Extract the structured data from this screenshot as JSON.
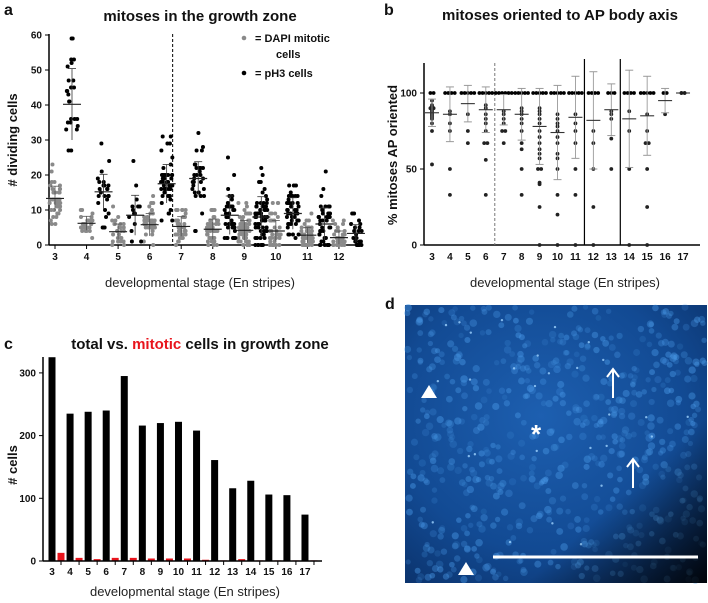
{
  "chart_data": [
    {
      "panel": "a",
      "type": "scatter",
      "title": "mitoses in the growth zone",
      "xlabel": "developmental stage (En stripes)",
      "ylabel": "# dividing cells",
      "ylim": [
        0,
        60
      ],
      "yticks": [
        "0",
        "10",
        "20",
        "30",
        "40",
        "50",
        "60"
      ],
      "categories": [
        "3",
        "4",
        "5",
        "6",
        "7",
        "8",
        "9",
        "10",
        "11",
        "12"
      ],
      "divider_after_category": "6",
      "legend": {
        "placement": "top-right",
        "entries": [
          {
            "label_line1": "= DAPI mitotic",
            "label_line2": "cells",
            "color": "#8a8a8a"
          },
          {
            "label_line1": "= pH3 cells",
            "color": "#000000"
          }
        ]
      },
      "series": [
        {
          "name": "DAPI mitotic cells",
          "color": "#8a8a8a",
          "mean": [
            13.3,
            6.2,
            3.8,
            5.8,
            5.3,
            4.5,
            4.2,
            4.0,
            2.8,
            2.1
          ],
          "sd": [
            3.5,
            2.0,
            2.2,
            3.2,
            2.8,
            2.9,
            2.8,
            3.0,
            2.2,
            1.9
          ],
          "n": [
            40,
            30,
            25,
            40,
            35,
            45,
            55,
            35,
            45,
            35
          ],
          "min": [
            6,
            2,
            0,
            0,
            0,
            0,
            0,
            0,
            0,
            0
          ],
          "max": [
            23,
            10,
            11,
            14,
            10,
            10,
            12,
            12,
            9,
            7
          ]
        },
        {
          "name": "pH3 cells",
          "color": "#000000",
          "mean": [
            40.2,
            15.2,
            8.5,
            17.5,
            19.0,
            8.5,
            8.0,
            9.0,
            6.0,
            3.3
          ],
          "sd": [
            10.2,
            5.0,
            5.7,
            5.5,
            4.8,
            5.5,
            5.8,
            4.5,
            4.6,
            2.5
          ],
          "n": [
            25,
            25,
            15,
            45,
            30,
            40,
            60,
            45,
            45,
            25
          ],
          "min": [
            27,
            5,
            1,
            7,
            4,
            2,
            0,
            2,
            0,
            0
          ],
          "max": [
            59,
            29,
            24,
            31,
            32,
            25,
            22,
            17,
            21,
            9
          ]
        }
      ]
    },
    {
      "panel": "b",
      "type": "scatter",
      "title": "mitoses oriented to AP body axis",
      "xlabel": "developmental stage (En stripes)",
      "ylabel": "% mitoses AP oriented",
      "ylim": [
        0,
        120
      ],
      "yticks": [
        "0",
        "50",
        "100"
      ],
      "categories": [
        "3",
        "4",
        "5",
        "6",
        "7",
        "8",
        "9",
        "10",
        "11",
        "12",
        "13",
        "14",
        "15",
        "16",
        "17"
      ],
      "dashed_divider_after": "6",
      "solid_dividers_after": [
        "11",
        "13"
      ],
      "mean": [
        87,
        86,
        93,
        89,
        89,
        86,
        78,
        74,
        84,
        82,
        89,
        83,
        85,
        95,
        100
      ],
      "sd": [
        9,
        18,
        12,
        15,
        10,
        17,
        25,
        31,
        27,
        32,
        17,
        32,
        26,
        8,
        0
      ],
      "points": [
        [
          100,
          100,
          95,
          92,
          91,
          90,
          90,
          89,
          88,
          87,
          86,
          85,
          84,
          83,
          80,
          75,
          53
        ],
        [
          100,
          100,
          100,
          100,
          88,
          86,
          80,
          75,
          50,
          33
        ],
        [
          100,
          100,
          100,
          100,
          100,
          86,
          75,
          67
        ],
        [
          100,
          100,
          100,
          100,
          100,
          92,
          90,
          86,
          83,
          80,
          75,
          67,
          67,
          56,
          33
        ],
        [
          100,
          100,
          100,
          100,
          100,
          100,
          88,
          86,
          83,
          80,
          75,
          75,
          67
        ],
        [
          100,
          100,
          100,
          100,
          100,
          90,
          88,
          86,
          83,
          80,
          75,
          67,
          63,
          50,
          33
        ],
        [
          100,
          100,
          100,
          100,
          100,
          90,
          88,
          86,
          83,
          80,
          75,
          71,
          67,
          63,
          60,
          57,
          50,
          50,
          41,
          40,
          25,
          0
        ],
        [
          100,
          100,
          100,
          100,
          100,
          86,
          83,
          80,
          78,
          75,
          71,
          67,
          60,
          57,
          50,
          33,
          20,
          0
        ],
        [
          100,
          100,
          100,
          100,
          100,
          86,
          80,
          75,
          67,
          50,
          33,
          0
        ],
        [
          100,
          100,
          100,
          100,
          75,
          67,
          50,
          25,
          0
        ],
        [
          100,
          100,
          100,
          88,
          86,
          83,
          70,
          50
        ],
        [
          100,
          100,
          100,
          100,
          88,
          75,
          50,
          0
        ],
        [
          100,
          100,
          100,
          100,
          100,
          86,
          75,
          67,
          67,
          50,
          25,
          0
        ],
        [
          100,
          100,
          86
        ],
        [
          100,
          100
        ]
      ]
    },
    {
      "panel": "c",
      "type": "bar",
      "title_part1": "total vs. ",
      "title_part2": "mitotic",
      "title_part3": " cells in growth zone",
      "xlabel": "developmental stage (En stripes)",
      "ylabel": "# cells",
      "ylim": [
        0,
        325
      ],
      "yticks": [
        "0",
        "100",
        "200",
        "300"
      ],
      "categories": [
        "3",
        "4",
        "5",
        "6",
        "7",
        "8",
        "9",
        "10",
        "11",
        "12",
        "13",
        "14",
        "15",
        "16",
        "17"
      ],
      "series": [
        {
          "name": "total",
          "color": "#000000",
          "values": [
            325,
            235,
            238,
            240,
            295,
            216,
            220,
            222,
            208,
            161,
            116,
            128,
            106,
            105,
            74
          ]
        },
        {
          "name": "mitotic",
          "color": "#e8141c",
          "values": [
            13,
            5,
            3,
            5,
            5,
            4,
            4,
            4,
            2,
            1,
            3,
            1,
            1,
            1,
            1
          ]
        }
      ]
    }
  ],
  "panel_d": {
    "letter": "d",
    "asterisk": "*"
  },
  "letters": {
    "a": "a",
    "b": "b",
    "c": "c"
  }
}
